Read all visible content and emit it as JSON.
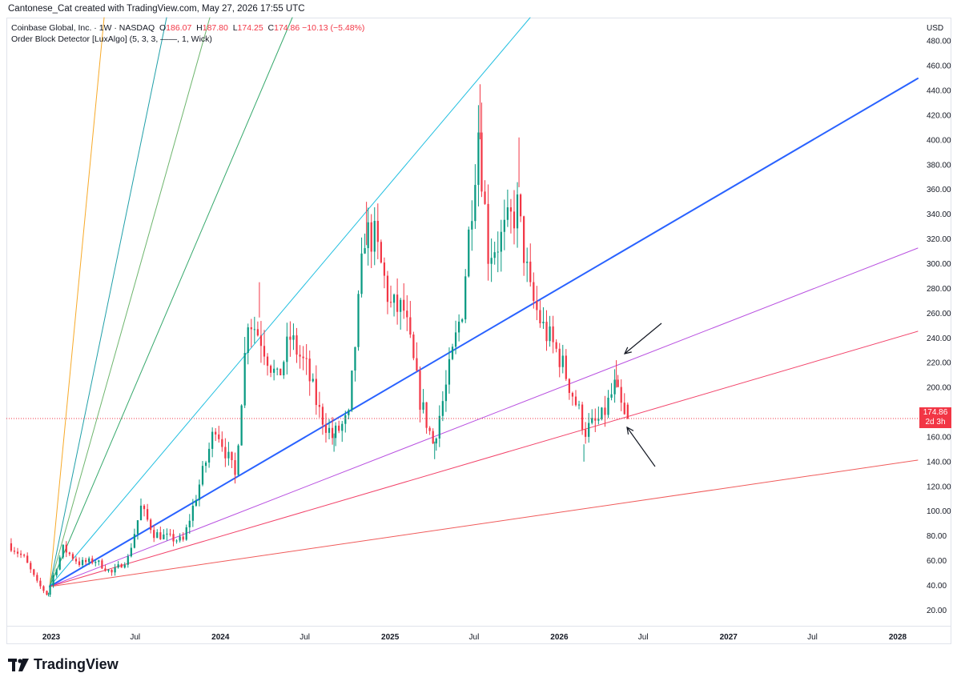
{
  "header": {
    "attribution": "Cantonese_Cat created with TradingView.com, May 27, 2026 17:55 UTC"
  },
  "legend": {
    "symbol": "Coinbase Global, Inc. · 1W · NASDAQ",
    "o_label": "O",
    "o": "186.07",
    "h_label": "H",
    "h": "187.80",
    "l_label": "L",
    "l": "174.25",
    "c_label": "C",
    "c": "174.86",
    "change": "−10.13 (−5.48%)",
    "indicator": "Order Block Detector [LuxAlgo] (5, 3, 3, ——, 1, Wick)"
  },
  "price_axis": {
    "currency": "USD",
    "last_price": "174.86",
    "countdown": "2d 3h"
  },
  "brand": {
    "name": "TradingView"
  },
  "colors": {
    "up": "#089981",
    "down": "#f23645",
    "trendline": "#2962ff",
    "fan_purple": "#b84fe0",
    "fan_pink": "#f2436a",
    "fan_red": "#f05a5a"
  },
  "chart_data": {
    "type": "candlestick",
    "timeframe": "1W",
    "ylim": [
      0,
      490
    ],
    "y_ticks": [
      "20.00",
      "40.00",
      "60.00",
      "80.00",
      "100.00",
      "120.00",
      "140.00",
      "160.00",
      "180.00",
      "200.00",
      "220.00",
      "240.00",
      "260.00",
      "280.00",
      "300.00",
      "320.00",
      "340.00",
      "360.00",
      "380.00",
      "400.00",
      "420.00",
      "440.00",
      "460.00",
      "480.00"
    ],
    "x_ticks": [
      {
        "label": "2023",
        "date": "2023-01-01"
      },
      {
        "label": "Jul",
        "date": "2023-07-01"
      },
      {
        "label": "2024",
        "date": "2024-01-01"
      },
      {
        "label": "Jul",
        "date": "2024-07-01"
      },
      {
        "label": "2025",
        "date": "2025-01-01"
      },
      {
        "label": "Jul",
        "date": "2025-07-01"
      },
      {
        "label": "2026",
        "date": "2026-01-01"
      },
      {
        "label": "Jul",
        "date": "2026-07-01"
      },
      {
        "label": "2027",
        "date": "2027-01-01"
      },
      {
        "label": "Jul",
        "date": "2027-07-01"
      },
      {
        "label": "2028",
        "date": "2028-01-01"
      }
    ],
    "close_path": [
      [
        "2022-10-03",
        74
      ],
      [
        "2022-11-07",
        62
      ],
      [
        "2022-12-05",
        42
      ],
      [
        "2022-12-26",
        33
      ],
      [
        "2023-01-30",
        70
      ],
      [
        "2023-03-06",
        58
      ],
      [
        "2023-04-10",
        60
      ],
      [
        "2023-05-15",
        50
      ],
      [
        "2023-06-19",
        62
      ],
      [
        "2023-07-17",
        103
      ],
      [
        "2023-08-14",
        82
      ],
      [
        "2023-09-18",
        78
      ],
      [
        "2023-10-16",
        76
      ],
      [
        "2023-11-06",
        103
      ],
      [
        "2023-12-04",
        140
      ],
      [
        "2023-12-25",
        170
      ],
      [
        "2024-02-05",
        128
      ],
      [
        "2024-03-04",
        258
      ],
      [
        "2024-04-01",
        240
      ],
      [
        "2024-05-06",
        205
      ],
      [
        "2024-06-03",
        240
      ],
      [
        "2024-07-08",
        215
      ],
      [
        "2024-08-05",
        180
      ],
      [
        "2024-09-02",
        160
      ],
      [
        "2024-10-07",
        175
      ],
      [
        "2024-11-11",
        325
      ],
      [
        "2024-12-02",
        320
      ],
      [
        "2025-01-06",
        265
      ],
      [
        "2025-02-03",
        262
      ],
      [
        "2025-03-10",
        190
      ],
      [
        "2025-04-07",
        155
      ],
      [
        "2025-05-05",
        200
      ],
      [
        "2025-06-09",
        265
      ],
      [
        "2025-07-14",
        410
      ],
      [
        "2025-08-04",
        310
      ],
      [
        "2025-09-01",
        320
      ],
      [
        "2025-10-06",
        345
      ],
      [
        "2025-11-03",
        275
      ],
      [
        "2025-12-01",
        248
      ],
      [
        "2026-01-05",
        225
      ],
      [
        "2026-02-02",
        195
      ],
      [
        "2026-03-02",
        165
      ],
      [
        "2026-04-06",
        175
      ],
      [
        "2026-05-04",
        200
      ],
      [
        "2026-05-25",
        175
      ]
    ],
    "wick_highs": [
      [
        "2025-07-14",
        445
      ],
      [
        "2025-10-06",
        402
      ],
      [
        "2024-11-11",
        350
      ],
      [
        "2024-03-25",
        285
      ],
      [
        "2026-05-04",
        222
      ]
    ],
    "wick_lows": [
      [
        "2022-12-26",
        31
      ],
      [
        "2025-04-07",
        142
      ],
      [
        "2026-02-23",
        140
      ],
      [
        "2024-09-02",
        148
      ]
    ],
    "last": {
      "date": "2026-05-25",
      "open": 186.07,
      "high": 187.8,
      "low": 174.25,
      "close": 174.86
    }
  }
}
